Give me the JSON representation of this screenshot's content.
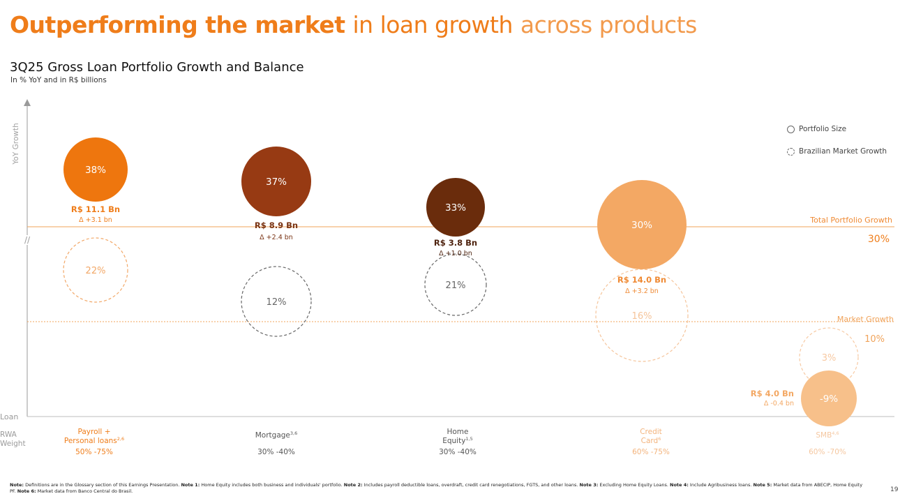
{
  "header": {
    "title_bold": "Outperforming the market",
    "title_regular": "in loan growth",
    "title_light": "across products",
    "subtitle": "3Q25 Gross Loan Portfolio Growth and Balance",
    "unit": "In % YoY and in R$ billions"
  },
  "legend": {
    "portfolio_size": "Portfolio Size",
    "market_growth": "Brazilian Market Growth"
  },
  "labels": {
    "y_axis": "YoY Growth",
    "loan_row": "Loan",
    "rwa_line1": "RWA",
    "rwa_line2": "Weight",
    "axis_break": "//"
  },
  "chart_data": {
    "type": "bubble",
    "title": "3Q25 Gross Loan Portfolio Growth and Balance",
    "ylabel": "YoY Growth",
    "total_portfolio_growth": {
      "label": "Total Portfolio Growth",
      "value": "30%",
      "number": 30
    },
    "market_growth": {
      "label": "Market Growth",
      "value": "10%",
      "number": 10
    },
    "products": [
      {
        "name_lines": [
          "Payroll +",
          "Personal loans"
        ],
        "note": "2,6",
        "portfolio_growth": 38,
        "growth_label": "38%",
        "balance_label": "R$ 11.1 Bn",
        "balance": 11.1,
        "delta_label": "Δ +3.1 bn",
        "delta": 3.1,
        "market_growth": 22,
        "market_label": "22%",
        "rwa_weight": "50% -75%",
        "color": "#ee760e"
      },
      {
        "name_lines": [
          "Mortgage"
        ],
        "note": "3,6",
        "portfolio_growth": 37,
        "growth_label": "37%",
        "balance_label": "R$ 8.9 Bn",
        "balance": 8.9,
        "delta_label": "Δ +2.4 bn",
        "delta": 2.4,
        "market_growth": 12,
        "market_label": "12%",
        "rwa_weight": "30% -40%",
        "color": "#973a13"
      },
      {
        "name_lines": [
          "Home",
          "Equity"
        ],
        "note": "1,5",
        "portfolio_growth": 33,
        "growth_label": "33%",
        "balance_label": "R$ 3.8 Bn",
        "balance": 3.8,
        "delta_label": "Δ +1.0 bn",
        "delta": 1.0,
        "market_growth": 21,
        "market_label": "21%",
        "rwa_weight": "30% -40%",
        "color": "#6a2c0c"
      },
      {
        "name_lines": [
          "Credit",
          "Card"
        ],
        "note": "6",
        "portfolio_growth": 30,
        "growth_label": "30%",
        "balance_label": "R$ 14.0 Bn",
        "balance": 14.0,
        "delta_label": "Δ +3.2 bn",
        "delta": 3.2,
        "market_growth": 16,
        "market_label": "16%",
        "rwa_weight": "60% -75%",
        "color": "#f3a864"
      },
      {
        "name_lines": [
          "SMB"
        ],
        "note": "4,6",
        "portfolio_growth": -9,
        "growth_label": "-9%",
        "balance_label": "R$ 4.0 Bn",
        "balance": 4.0,
        "delta_label": "Δ -0.4 bn",
        "delta": -0.4,
        "market_growth": 3,
        "market_label": "3%",
        "rwa_weight": "60% -70%",
        "color": "#f7c08a"
      }
    ]
  },
  "footnote": {
    "note_label": "Note:",
    "note": "Definitions are in the Glossary section of this Earnings Presentation.",
    "n1_label": "Note 1:",
    "n1": "Home Equity includes both business and individuals' portfolio.",
    "n2_label": "Note 2:",
    "n2": "Includes payroll deductible loans, overdraft, credit card renegotiations, FGTS, and other loans.",
    "n3_label": "Note 3:",
    "n3": "Excluding Home Equity Loans.",
    "n4_label": "Note 4:",
    "n4": "Include Agribusiness loans.",
    "n5_label": "Note 5:",
    "n5": "Market data from ABECIP, Home Equity PF.",
    "n6_label": "Note 6:",
    "n6": "Market data from Banco Central do Brasil."
  },
  "page_number": "19",
  "colors": {
    "accent": "#ef7d1a",
    "axis": "#9a9a9a",
    "total_line": "#f0a35a",
    "market_line": "#f0a35a"
  }
}
